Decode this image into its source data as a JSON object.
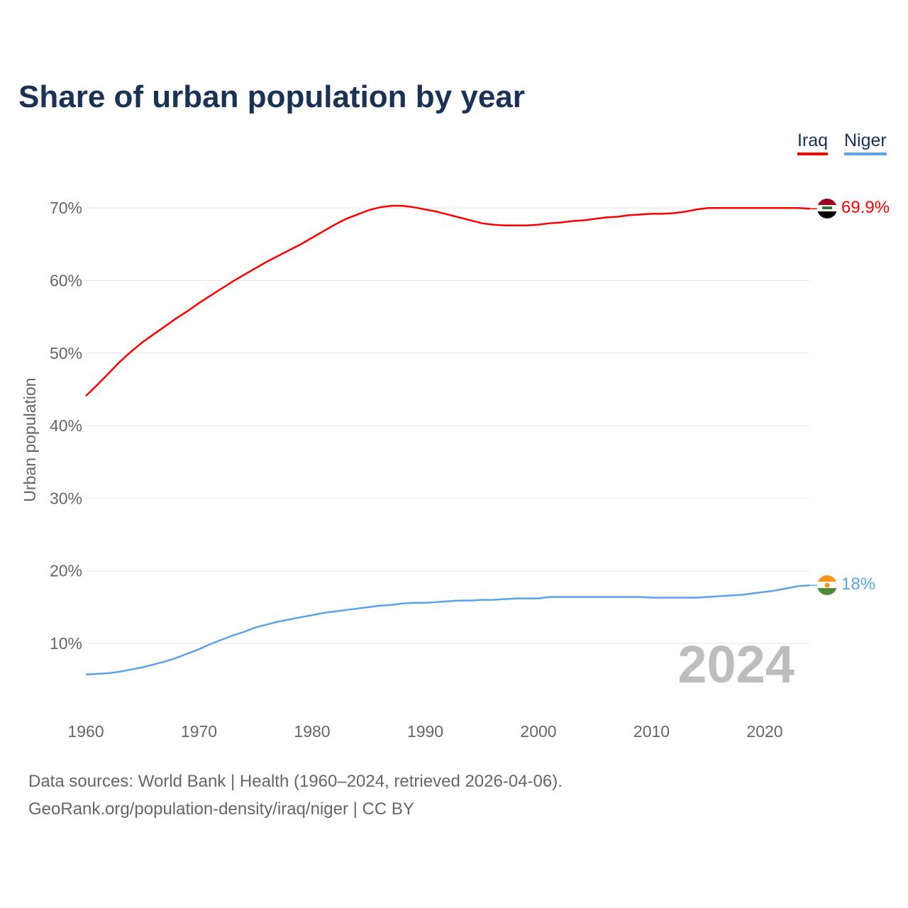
{
  "chart_data": {
    "type": "line",
    "title": "Share of urban population by year",
    "ylabel": "Urban population",
    "xlabel": "",
    "ylim": [
      0,
      72
    ],
    "xlim": [
      1960,
      2024
    ],
    "yticks": [
      "10%",
      "20%",
      "30%",
      "40%",
      "50%",
      "60%",
      "70%"
    ],
    "ytick_values": [
      10,
      20,
      30,
      40,
      50,
      60,
      70
    ],
    "xticks": [
      "1960",
      "1970",
      "1980",
      "1990",
      "2000",
      "2010",
      "2020"
    ],
    "xtick_values": [
      1960,
      1970,
      1980,
      1990,
      2000,
      2010,
      2020
    ],
    "grid": true,
    "legend_placement": "top-right",
    "year_watermark": "2024",
    "x_start": 1960,
    "series": [
      {
        "name": "Iraq",
        "color": "#ff0000",
        "end_label": "69.9%",
        "flag": "iraq-flag",
        "values": [
          44.1,
          45.6,
          47.2,
          48.8,
          50.2,
          51.5,
          52.6,
          53.7,
          54.8,
          55.8,
          56.9,
          57.9,
          58.9,
          59.9,
          60.8,
          61.7,
          62.6,
          63.4,
          64.2,
          65.0,
          65.9,
          66.8,
          67.7,
          68.5,
          69.1,
          69.7,
          70.1,
          70.3,
          70.3,
          70.1,
          69.8,
          69.5,
          69.1,
          68.7,
          68.3,
          67.9,
          67.7,
          67.6,
          67.6,
          67.6,
          67.7,
          67.9,
          68.0,
          68.2,
          68.3,
          68.5,
          68.7,
          68.8,
          69.0,
          69.1,
          69.2,
          69.2,
          69.3,
          69.5,
          69.8,
          70.0,
          70.0,
          70.0,
          70.0,
          70.0,
          70.0,
          70.0,
          70.0,
          70.0,
          69.9
        ]
      },
      {
        "name": "Niger",
        "color": "#5ba3e8",
        "end_label": "18%",
        "flag": "niger-flag",
        "values": [
          5.7,
          5.8,
          5.9,
          6.1,
          6.4,
          6.7,
          7.1,
          7.5,
          8.0,
          8.6,
          9.2,
          9.9,
          10.5,
          11.1,
          11.6,
          12.2,
          12.6,
          13.0,
          13.3,
          13.6,
          13.9,
          14.2,
          14.4,
          14.6,
          14.8,
          15.0,
          15.2,
          15.3,
          15.5,
          15.6,
          15.6,
          15.7,
          15.8,
          15.9,
          15.9,
          16.0,
          16.0,
          16.1,
          16.2,
          16.2,
          16.2,
          16.4,
          16.4,
          16.4,
          16.4,
          16.4,
          16.4,
          16.4,
          16.4,
          16.4,
          16.3,
          16.3,
          16.3,
          16.3,
          16.3,
          16.4,
          16.5,
          16.6,
          16.7,
          16.9,
          17.1,
          17.3,
          17.6,
          17.9,
          18.0
        ]
      }
    ]
  },
  "footer": {
    "line1": "Data sources: World Bank | Health (1960–2024, retrieved 2026-04-06).",
    "line2": "GeoRank.org/population-density/iraq/niger | CC BY"
  }
}
